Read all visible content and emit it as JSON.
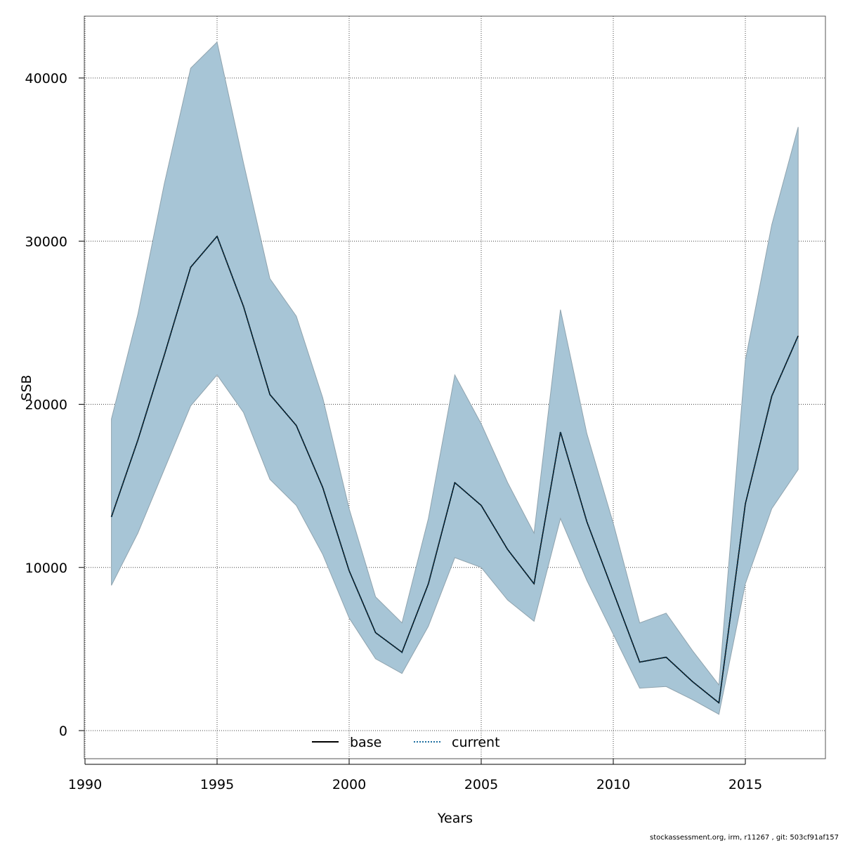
{
  "chart_data": {
    "type": "area",
    "title": "",
    "xlabel": "Years",
    "ylabel": "SSB",
    "xlim": [
      1990,
      2018
    ],
    "ylim": [
      -1700,
      43900
    ],
    "xticks": [
      1990,
      1995,
      2000,
      2005,
      2010,
      2015
    ],
    "yticks": [
      0,
      10000,
      20000,
      30000,
      40000
    ],
    "grid": true,
    "legend_position": "bottom-center",
    "legend": [
      "base",
      "current"
    ],
    "x": [
      1991,
      1992,
      1993,
      1994,
      1995,
      1996,
      1997,
      1998,
      1999,
      2000,
      2001,
      2002,
      2003,
      2004,
      2005,
      2006,
      2007,
      2008,
      2009,
      2010,
      2011,
      2012,
      2013,
      2014,
      2015,
      2016,
      2017
    ],
    "series": [
      {
        "name": "base",
        "style": "solid",
        "color": "#000000",
        "values": [
          13100,
          17800,
          23000,
          28400,
          30300,
          26000,
          20600,
          18700,
          14900,
          9800,
          6000,
          4800,
          9000,
          15200,
          13800,
          11100,
          9000,
          18300,
          12800,
          8500,
          4200,
          4500,
          3000,
          1700,
          13900,
          20500,
          24200
        ]
      },
      {
        "name": "current",
        "style": "dotted",
        "color": "#1f6fa0",
        "values": [
          13100,
          17800,
          23000,
          28400,
          30300,
          26000,
          20600,
          18700,
          14900,
          9800,
          6000,
          4800,
          9000,
          15200,
          13800,
          11100,
          9000,
          18300,
          12800,
          8500,
          4200,
          4500,
          3000,
          1700,
          13900,
          20500,
          24200
        ]
      }
    ],
    "confidence_band": {
      "color": "#a7c5d6",
      "lower": [
        8900,
        12100,
        16000,
        19900,
        21800,
        19500,
        15400,
        13800,
        10800,
        6900,
        4400,
        3500,
        6400,
        10600,
        10000,
        8000,
        6700,
        13000,
        9200,
        5900,
        2600,
        2700,
        1900,
        1000,
        9000,
        13600,
        16000
      ],
      "upper": [
        19100,
        25500,
        33500,
        40600,
        42200,
        34800,
        27700,
        25400,
        20400,
        13600,
        8200,
        6600,
        13000,
        21800,
        18800,
        15200,
        12100,
        25800,
        18200,
        12700,
        6600,
        7200,
        4900,
        2800,
        22700,
        31000,
        37000
      ]
    }
  },
  "footer": {
    "note": "stockassessment.org, irm, r11267 , git: 503cf91af157"
  }
}
